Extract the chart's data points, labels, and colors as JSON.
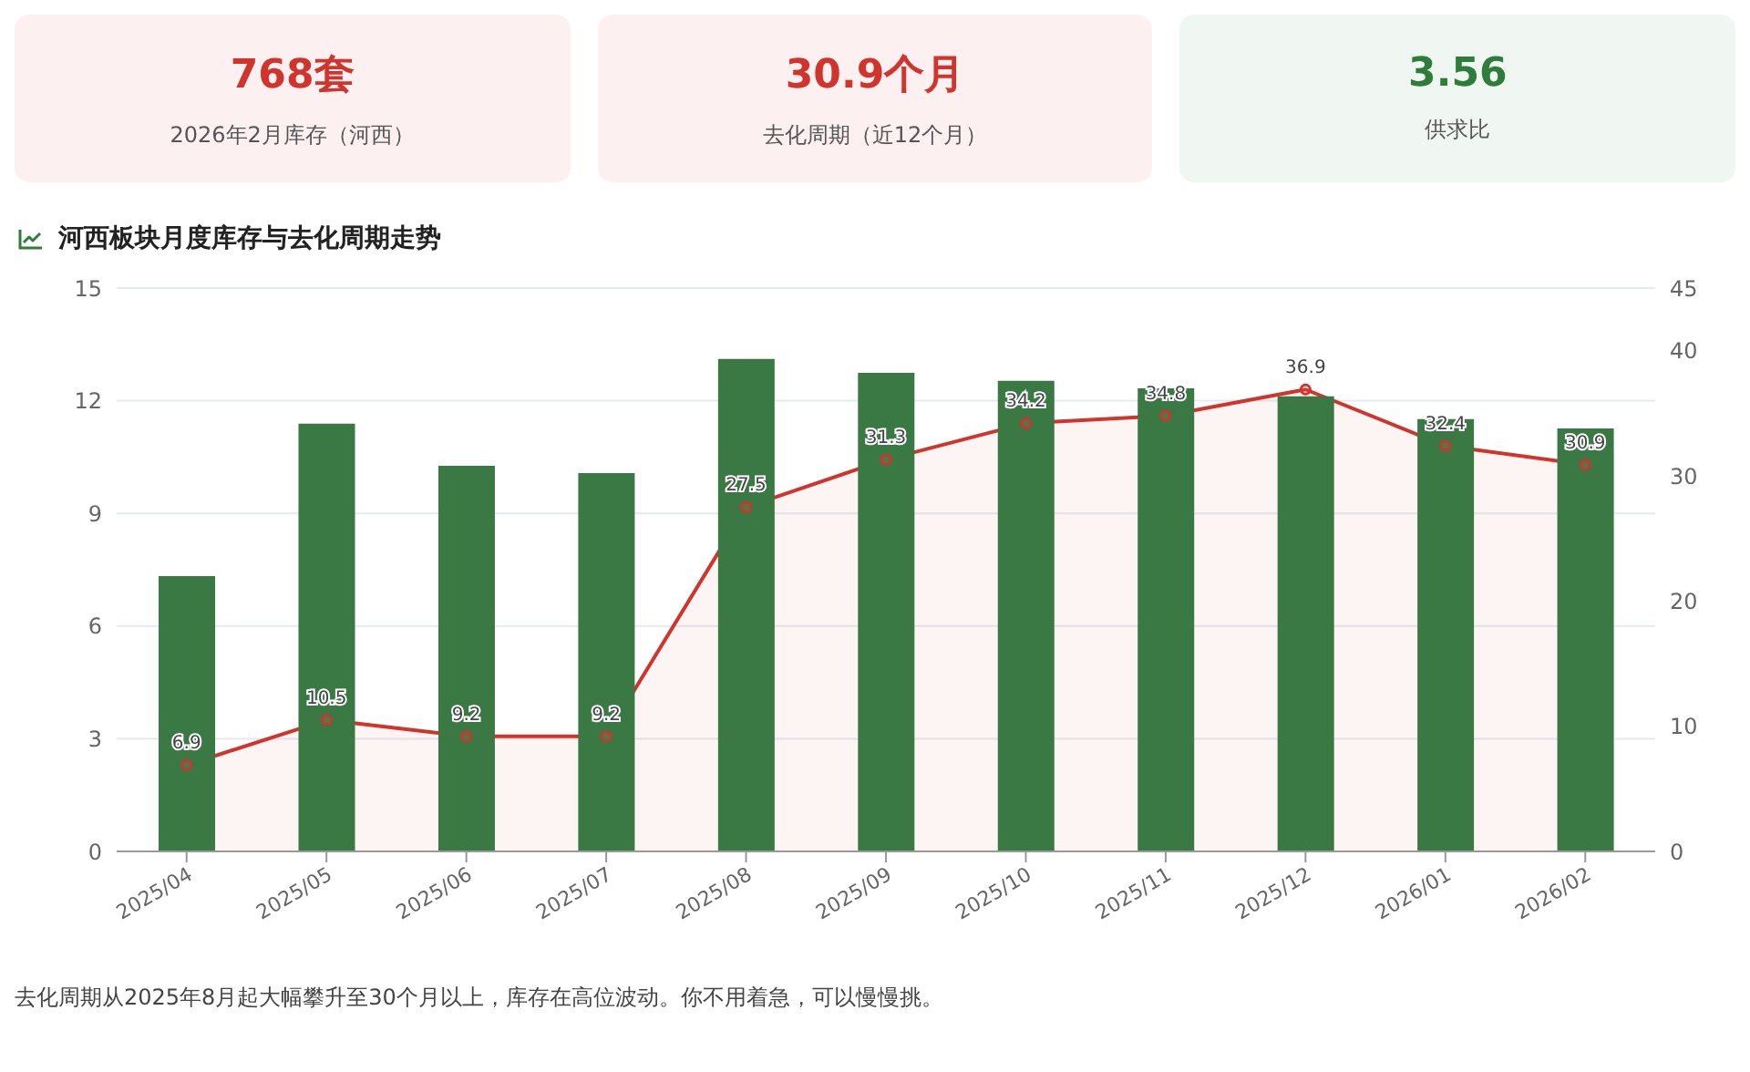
{
  "chart_data": [
    {
      "type": "other",
      "categories": [
        "2026年2月库存（河西）",
        "去化周期（近12个月）",
        "供求比"
      ],
      "value_labels": [
        "768套",
        "30.9个月",
        "3.56"
      ],
      "colors": [
        "#d0342c",
        "#d0342c",
        "#2e7d3a"
      ]
    },
    {
      "type": "bar",
      "title": "河西板块月度库存与去化周期走势",
      "categories": [
        "2025/04",
        "2025/05",
        "2025/06",
        "2025/07",
        "2025/08",
        "2025/09",
        "2025/10",
        "2025/11",
        "2025/12",
        "2026/01",
        "2026/02"
      ],
      "series": [
        {
          "type": "bar",
          "color": "#3a7844",
          "values": [
            7.33,
            11.39,
            10.27,
            10.07,
            13.11,
            12.74,
            12.53,
            12.33,
            12.12,
            11.51,
            11.26
          ]
        },
        {
          "type": "area",
          "axis": "y2",
          "color": "#d0342c",
          "values": [
            6.9,
            10.5,
            9.2,
            9.2,
            27.5,
            31.3,
            34.2,
            34.8,
            36.9,
            32.4,
            30.9
          ],
          "value_labels": [
            "6.9",
            "10.5",
            "9.2",
            "9.2",
            "27.5",
            "31.3",
            "34.2",
            "34.8",
            "36.9",
            "32.4",
            "30.9"
          ]
        }
      ],
      "ylim": [
        0,
        15
      ],
      "yticks": [
        0,
        3,
        6,
        9,
        12,
        15
      ],
      "y2lim": [
        0,
        45
      ],
      "y2ticks": [
        0,
        10,
        20,
        30,
        40,
        45
      ],
      "grid": "y",
      "legend": false,
      "marker": "circle",
      "annotations": [
        "去化周期从2025年8月起大幅攀升至30个月以上，库存在高位波动。你不用着急，可以慢慢挑。"
      ]
    }
  ]
}
